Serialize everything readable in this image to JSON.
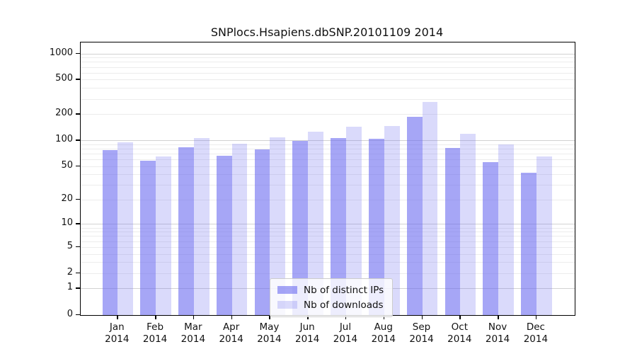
{
  "title": "SNPlocs.Hsapiens.dbSNP.20101109 2014",
  "accent_color": "#6a6af0",
  "chart_data": {
    "type": "bar",
    "title": "SNPlocs.Hsapiens.dbSNP.20101109 2014",
    "categories": [
      "Jan",
      "Feb",
      "Mar",
      "Apr",
      "May",
      "Jun",
      "Jul",
      "Aug",
      "Sep",
      "Oct",
      "Nov",
      "Dec"
    ],
    "category_year": "2014",
    "series": [
      {
        "name": "Nb of distinct IPs",
        "color": "rgba(106,106,240,0.60)",
        "values": [
          77,
          58,
          84,
          66,
          79,
          100,
          107,
          105,
          188,
          82,
          56,
          42
        ]
      },
      {
        "name": "Nb of downloads",
        "color": "rgba(106,106,240,0.25)",
        "values": [
          95,
          65,
          106,
          92,
          108,
          126,
          145,
          148,
          277,
          119,
          90,
          65
        ]
      }
    ],
    "xlabel": "",
    "ylabel": "",
    "y_axis": {
      "scale": "log1p",
      "ticks": [
        0,
        1,
        2,
        5,
        10,
        20,
        50,
        100,
        200,
        500,
        1000
      ],
      "ylim": [
        0,
        1340
      ]
    },
    "grid": "major horizontal at 1,10,100,1000; minor at 2-9 of each decade",
    "legend_position": "bottom-center"
  }
}
